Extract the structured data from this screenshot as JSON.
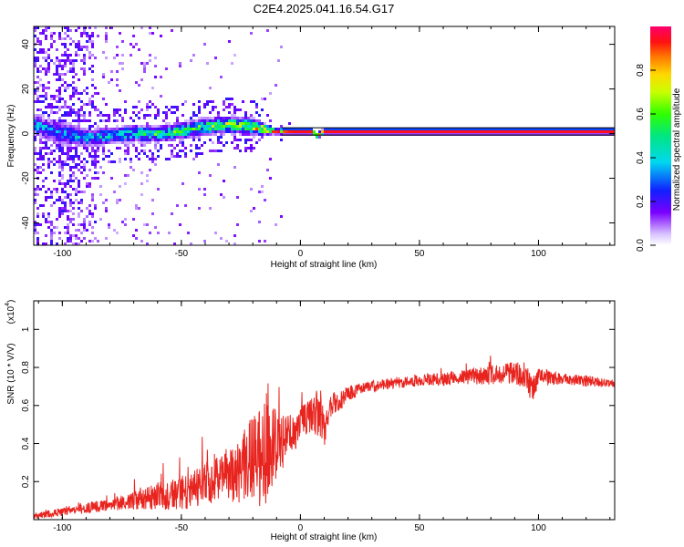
{
  "title": "C2E4.2025.041.16.54.G17",
  "colors": {
    "snr_line": "#e8241f",
    "spectrum_trace": "#e8241f",
    "axis": "#000000"
  },
  "colorbar": {
    "label": "Normalized spectral amplitude",
    "ticks": [
      0.0,
      0.2,
      0.4,
      0.6,
      0.8
    ],
    "tick_labels": [
      "0.0",
      "0.2",
      "0.4",
      "0.6",
      "0.8"
    ],
    "range": [
      0,
      1
    ],
    "colormap": "rainbow"
  },
  "chart_data": [
    {
      "type": "heatmap",
      "xlabel": "Height of straight line (km)",
      "ylabel": "Frequency (Hz)",
      "xlim": [
        -112,
        132
      ],
      "ylim": [
        -50,
        48
      ],
      "xticks": [
        -100,
        -50,
        0,
        50,
        100
      ],
      "xtick_labels": [
        "-100",
        "-50",
        "0",
        "50",
        "100"
      ],
      "yticks": [
        -40,
        -20,
        0,
        20,
        40
      ],
      "ytick_labels": [
        "-40",
        "-20",
        "0",
        "20",
        "40"
      ],
      "trace": {
        "x": [
          -112,
          -100,
          -90,
          -80,
          -70,
          -60,
          -50,
          -40,
          -30,
          -20,
          -15,
          -10,
          -5,
          0,
          5,
          7,
          10,
          20,
          50,
          100,
          132
        ],
        "y": [
          4,
          0,
          -2,
          -1,
          0,
          0,
          1,
          3,
          4,
          3,
          2,
          1,
          1,
          1,
          1,
          -1,
          1,
          1,
          1,
          1,
          1
        ],
        "width": [
          4,
          4,
          3,
          3,
          3,
          3,
          3,
          3,
          3,
          3,
          2,
          1,
          1,
          1,
          1,
          1,
          1,
          1,
          1,
          1,
          1
        ],
        "amplitude": [
          0.3,
          0.3,
          0.35,
          0.35,
          0.4,
          0.45,
          0.45,
          0.5,
          0.55,
          0.6,
          0.7,
          0.85,
          0.95,
          0.97,
          0.95,
          0.8,
          0.97,
          0.97,
          0.97,
          0.97,
          0.97
        ]
      }
    },
    {
      "type": "line",
      "xlabel": "Height of straight line (km)",
      "ylabel": "SNR (10 * V/V)",
      "y_scale_label": "(x10",
      "y_scale_exponent": "4",
      "xlim": [
        -112,
        132
      ],
      "ylim": [
        0,
        1.15
      ],
      "xticks": [
        -100,
        -50,
        0,
        50,
        100
      ],
      "xtick_labels": [
        "-100",
        "-50",
        "0",
        "50",
        "100"
      ],
      "yticks": [
        0.2,
        0.4,
        0.6,
        0.8,
        1.0
      ],
      "ytick_labels": [
        "0.2",
        "0.4",
        "0.6",
        "0.8",
        "1"
      ],
      "series": [
        {
          "x": [
            -112,
            -105,
            -100,
            -95,
            -90,
            -85,
            -80,
            -75,
            -70,
            -65,
            -60,
            -55,
            -50,
            -45,
            -40,
            -35,
            -30,
            -25,
            -22,
            -20,
            -18,
            -15,
            -13,
            -12,
            -10,
            -8,
            -5,
            -2,
            0,
            2,
            5,
            8,
            10,
            12,
            15,
            18,
            20,
            25,
            30,
            40,
            50,
            60,
            70,
            80,
            90,
            95,
            97,
            100,
            110,
            120,
            132
          ],
          "y": [
            0.02,
            0.03,
            0.04,
            0.05,
            0.06,
            0.07,
            0.08,
            0.09,
            0.1,
            0.11,
            0.12,
            0.13,
            0.14,
            0.16,
            0.19,
            0.21,
            0.23,
            0.26,
            0.3,
            0.29,
            0.33,
            0.34,
            0.5,
            0.4,
            0.37,
            0.4,
            0.43,
            0.47,
            0.5,
            0.52,
            0.55,
            0.58,
            0.45,
            0.6,
            0.62,
            0.64,
            0.66,
            0.69,
            0.7,
            0.72,
            0.73,
            0.74,
            0.75,
            0.76,
            0.77,
            0.76,
            0.68,
            0.75,
            0.74,
            0.73,
            0.71
          ],
          "noise": [
            0.02,
            0.02,
            0.02,
            0.02,
            0.03,
            0.03,
            0.03,
            0.04,
            0.05,
            0.06,
            0.07,
            0.08,
            0.09,
            0.1,
            0.11,
            0.12,
            0.14,
            0.17,
            0.22,
            0.25,
            0.25,
            0.3,
            0.35,
            0.25,
            0.2,
            0.15,
            0.12,
            0.1,
            0.09,
            0.09,
            0.1,
            0.14,
            0.1,
            0.07,
            0.06,
            0.05,
            0.04,
            0.03,
            0.03,
            0.03,
            0.03,
            0.035,
            0.04,
            0.05,
            0.06,
            0.07,
            0.08,
            0.05,
            0.03,
            0.03,
            0.02
          ]
        }
      ]
    }
  ]
}
